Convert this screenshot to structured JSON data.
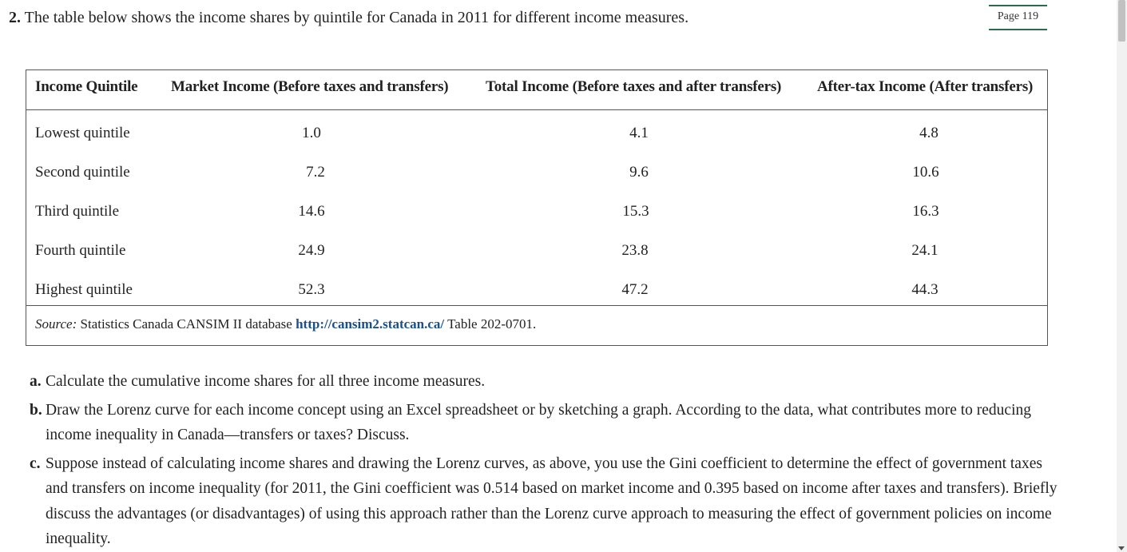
{
  "question": {
    "number": "2.",
    "text": " The table below shows the income shares by quintile for Canada in 2011 for different income measures."
  },
  "page_badge": "Page 119",
  "table": {
    "headers": [
      "Income Quintile",
      "Market Income (Before taxes and transfers)",
      "Total Income (Before taxes and after transfers)",
      "After-tax Income (After transfers)"
    ],
    "rows": [
      [
        "Lowest quintile",
        "1.0",
        "4.1",
        "4.8"
      ],
      [
        "Second quintile",
        "7.2",
        "9.6",
        "10.6"
      ],
      [
        "Third quintile",
        "14.6",
        "15.3",
        "16.3"
      ],
      [
        "Fourth quintile",
        "24.9",
        "23.8",
        "24.1"
      ],
      [
        "Highest quintile",
        "52.3",
        "47.2",
        "44.3"
      ]
    ],
    "source": {
      "label": "Source:",
      "text": " Statistics Canada CANSIM II database ",
      "link": "http://cansim2.statcan.ca/",
      "suffix": " Table 202-0701."
    }
  },
  "parts": [
    {
      "letter": "a.",
      "text": "Calculate the cumulative income shares for all three income measures."
    },
    {
      "letter": "b.",
      "text": "Draw the Lorenz curve for each income concept using an Excel spreadsheet or by sketching a graph. According to the data, what contributes more to reducing income inequality in Canada—transfers or taxes? Discuss."
    },
    {
      "letter": "c.",
      "text": "Suppose instead of calculating income shares and drawing the Lorenz curves, as above, you use the Gini coefficient to determine the effect of government taxes and transfers on income inequality (for 2011, the Gini coefficient was 0.514 based on market income and 0.395 based on income after taxes and transfers). Briefly discuss the advantages (or disadvantages) of using this approach rather than the Lorenz curve approach to measuring the effect of government policies on income inequality."
    }
  ]
}
